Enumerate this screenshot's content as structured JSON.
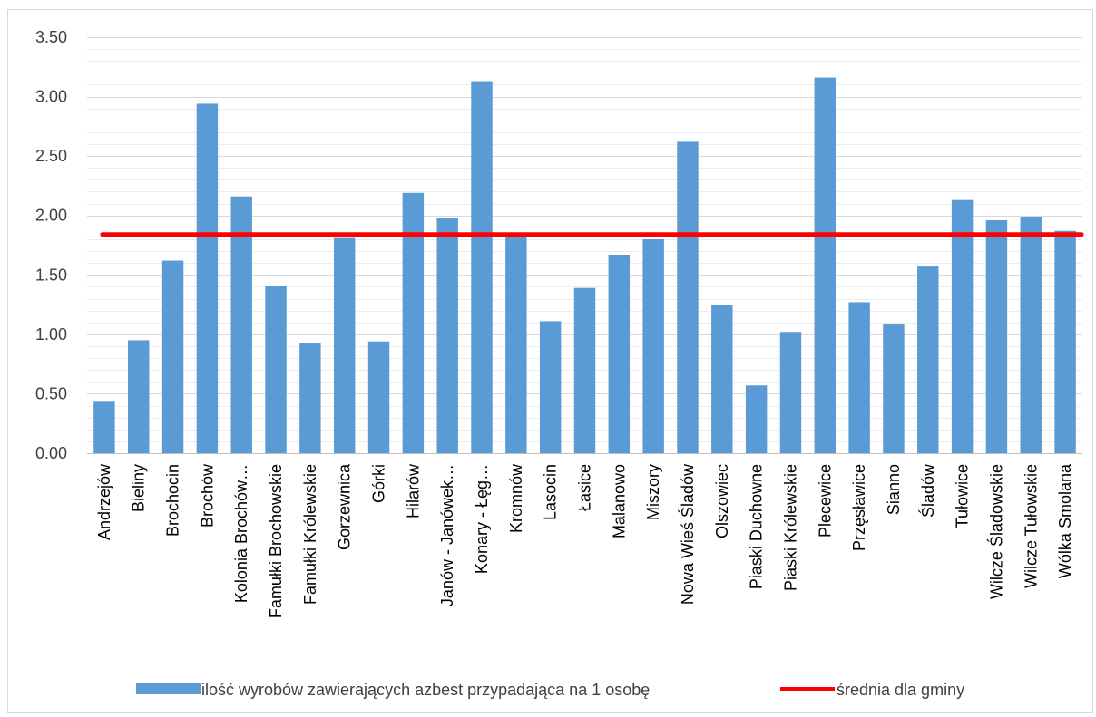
{
  "chart_data": {
    "type": "bar",
    "categories": [
      "Andrzejów",
      "Bieliny",
      "Brochocin",
      "Brochów",
      "Kolonia Brochów…",
      "Famułki Brochowskie",
      "Famułki Królewskie",
      "Gorzewnica",
      "Górki",
      "Hilarów",
      "Janów - Janówek…",
      "Konary - Łęg…",
      "Kromnów",
      "Lasocin",
      "Łasice",
      "Malanowo",
      "Miszory",
      "Nowa Wieś Śladów",
      "Olszowiec",
      "Piaski Duchowne",
      "Piaski Królewskie",
      "Plecewice",
      "Przęsławice",
      "Sianno",
      "Śladów",
      "Tułowice",
      "Wilcze Śladowskie",
      "Wilcze Tułowskie",
      "Wólka Smolana"
    ],
    "series": [
      {
        "name": "ilość wyrobów zawierających azbest przypadająca na 1 osobę",
        "type": "bar",
        "color": "#5b9bd5",
        "values": [
          0.44,
          0.95,
          1.62,
          2.94,
          2.16,
          1.41,
          0.93,
          1.81,
          0.94,
          2.19,
          1.98,
          3.13,
          1.85,
          1.11,
          1.39,
          1.67,
          1.8,
          2.62,
          1.25,
          0.57,
          1.02,
          3.16,
          1.27,
          1.09,
          1.57,
          2.13,
          1.96,
          1.99,
          1.87
        ]
      },
      {
        "name": "średnia dla gminy",
        "type": "line",
        "color": "#ff0000",
        "value": 1.84
      }
    ],
    "yticks": [
      "0.00",
      "0.50",
      "1.00",
      "1.50",
      "2.00",
      "2.50",
      "3.00",
      "3.50"
    ],
    "ylim": [
      0,
      3.5
    ],
    "title": "",
    "xlabel": "",
    "ylabel": "",
    "grid": true,
    "legend_position": "bottom"
  }
}
